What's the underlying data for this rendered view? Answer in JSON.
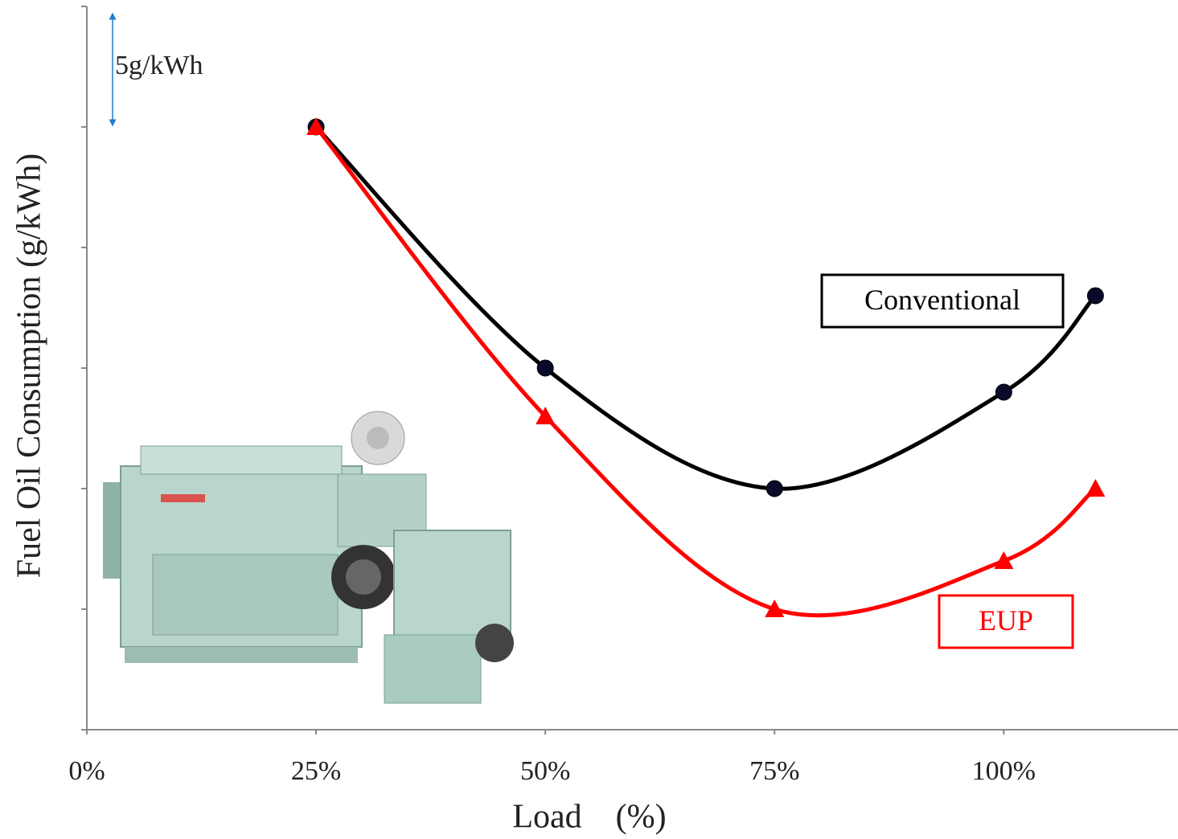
{
  "chart_data": {
    "type": "line",
    "x_label": "Load　(%)",
    "y_label": "Fuel Oil Consumption (g/kWh)",
    "annotation": "5g/kWh",
    "x": [
      25,
      50,
      75,
      100,
      110
    ],
    "xlim": [
      0,
      119
    ],
    "xticks": [
      {
        "value": 0,
        "label": "0%"
      },
      {
        "value": 25,
        "label": "25%"
      },
      {
        "value": 50,
        "label": "50%"
      },
      {
        "value": 75,
        "label": "75%"
      },
      {
        "value": 100,
        "label": "100%"
      }
    ],
    "ylim": [
      0,
      30
    ],
    "yticks": [
      0,
      5,
      10,
      15,
      20,
      25,
      30
    ],
    "series": [
      {
        "name": "Conventional",
        "color": "#000000",
        "marker": "circle",
        "values": [
          25,
          15,
          10,
          14,
          18
        ]
      },
      {
        "name": "EUP",
        "color": "#ff0000",
        "marker": "triangle",
        "values": [
          25,
          13,
          5,
          7,
          10
        ]
      }
    ]
  }
}
